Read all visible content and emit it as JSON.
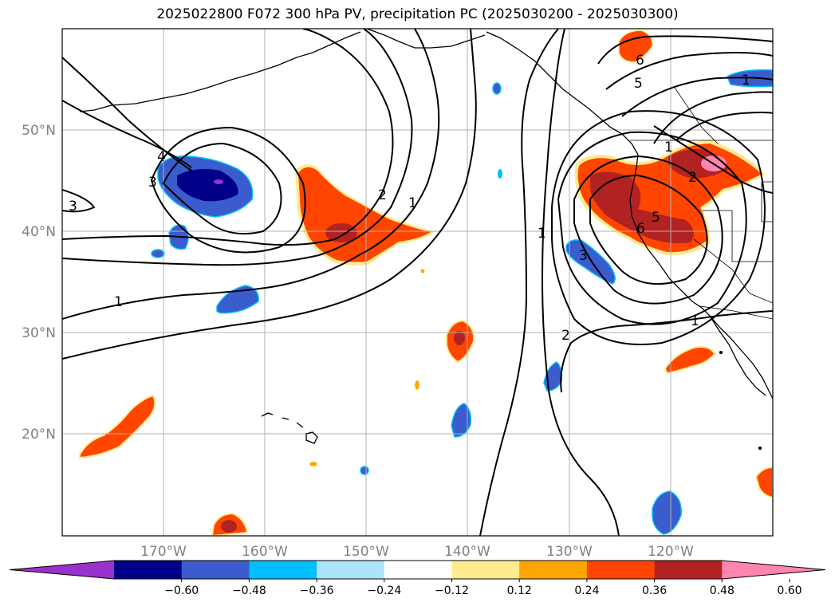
{
  "title": "2025022800 F072 300 hPa PV, precipitation PC (2025030200 - 2025030300)",
  "lat_labels": [
    "50°N",
    "40°N",
    "30°N",
    "20°N"
  ],
  "lon_labels": [
    "170°W",
    "160°W",
    "150°W",
    "140°W",
    "130°W",
    "120°W"
  ],
  "contour_labels": [
    "4",
    "3",
    "3",
    "2",
    "1",
    "1",
    "1",
    "2",
    "3",
    "5",
    "6",
    "6",
    "5",
    "2",
    "1",
    "1",
    "1"
  ],
  "colorbar": {
    "colors": [
      "#9932cc",
      "#00008b",
      "#3a5ccc",
      "#00bfff",
      "#ade3fb",
      "#ffffff",
      "#ffeb8f",
      "#ffa500",
      "#ff4500",
      "#b22222",
      "#ff85b0"
    ],
    "tick_labels": [
      "−0.60",
      "−0.48",
      "−0.36",
      "−0.24",
      "−0.12",
      "0.12",
      "0.24",
      "0.36",
      "0.48",
      "0.60"
    ]
  },
  "colors": {
    "coast": "#000000",
    "grid": "#b0b0b0",
    "contour": "#000000"
  }
}
